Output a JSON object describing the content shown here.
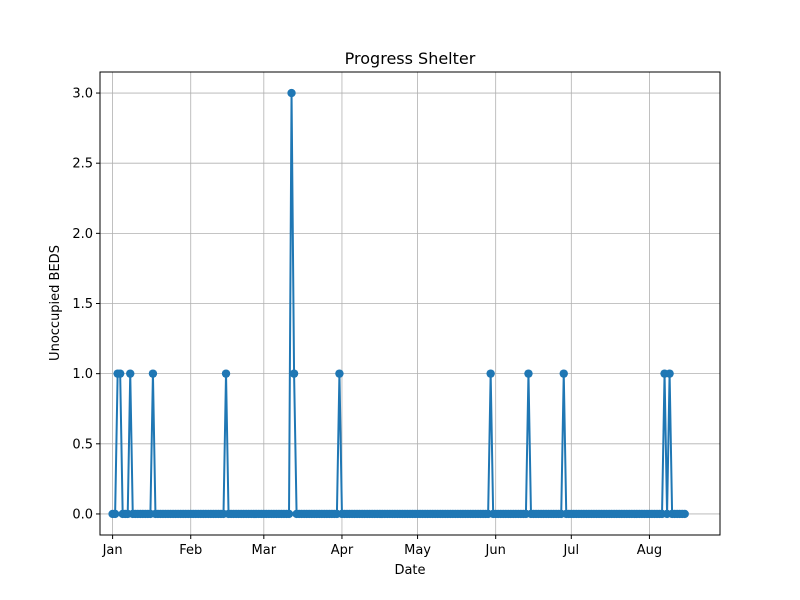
{
  "chart_data": {
    "type": "line",
    "title": "Progress Shelter",
    "xlabel": "Date",
    "ylabel": "Unoccupied BEDS",
    "x_axis_type": "date",
    "xlim": [
      "2023-12-27",
      "2024-08-29"
    ],
    "ylim": [
      -0.15,
      3.15
    ],
    "x_ticks": [
      {
        "date": "2024-01-01",
        "label": "Jan"
      },
      {
        "date": "2024-02-01",
        "label": "Feb"
      },
      {
        "date": "2024-03-01",
        "label": "Mar"
      },
      {
        "date": "2024-04-01",
        "label": "Apr"
      },
      {
        "date": "2024-05-01",
        "label": "May"
      },
      {
        "date": "2024-06-01",
        "label": "Jun"
      },
      {
        "date": "2024-07-01",
        "label": "Jul"
      },
      {
        "date": "2024-08-01",
        "label": "Aug"
      }
    ],
    "y_ticks": [
      {
        "value": 0.0,
        "label": "0.0"
      },
      {
        "value": 0.5,
        "label": "0.5"
      },
      {
        "value": 1.0,
        "label": "1.0"
      },
      {
        "value": 1.5,
        "label": "1.5"
      },
      {
        "value": 2.0,
        "label": "2.0"
      },
      {
        "value": 2.5,
        "label": "2.5"
      },
      {
        "value": 3.0,
        "label": "3.0"
      }
    ],
    "grid": true,
    "marker": "circle",
    "series_color": "#1f77b4",
    "series": [
      {
        "start_date": "2024-01-01",
        "end_date": "2024-08-15",
        "default_value": 0,
        "nonzero_points": [
          {
            "date": "2024-01-03",
            "value": 1
          },
          {
            "date": "2024-01-04",
            "value": 1
          },
          {
            "date": "2024-01-08",
            "value": 1
          },
          {
            "date": "2024-01-17",
            "value": 1
          },
          {
            "date": "2024-02-15",
            "value": 1
          },
          {
            "date": "2024-03-12",
            "value": 3
          },
          {
            "date": "2024-03-13",
            "value": 1
          },
          {
            "date": "2024-03-31",
            "value": 1
          },
          {
            "date": "2024-05-30",
            "value": 1
          },
          {
            "date": "2024-06-14",
            "value": 1
          },
          {
            "date": "2024-06-28",
            "value": 1
          },
          {
            "date": "2024-08-07",
            "value": 1
          },
          {
            "date": "2024-08-09",
            "value": 1
          }
        ]
      }
    ]
  }
}
